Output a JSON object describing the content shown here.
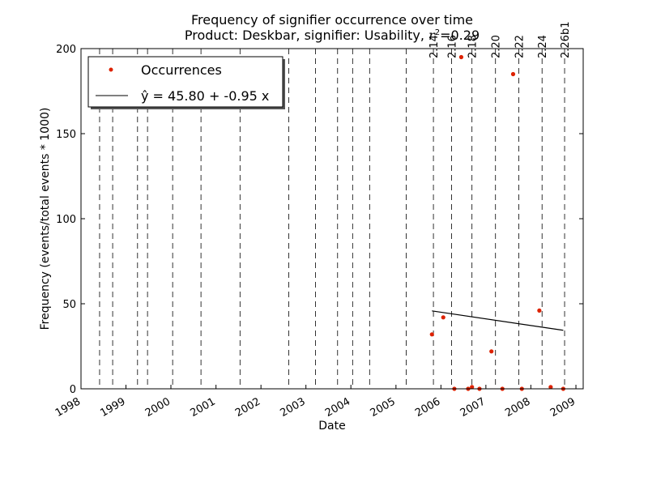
{
  "chart_data": {
    "type": "scatter",
    "title": "Frequency of signifier occurrence over time",
    "subtitle_prefix": "Product: Deskbar, signifier: Usability, ",
    "subtitle_r2_symbol": "r",
    "subtitle_r2_exp": "2",
    "subtitle_r2_value": "=0.29",
    "xlabel": "Date",
    "ylabel": "Frequency (events/total events * 1000)",
    "x_range": [
      "1998-01-01",
      "2009-03-01"
    ],
    "ylim": [
      0,
      200
    ],
    "x_ticks": [
      "1998-01-01",
      "1999-01-01",
      "2000-01-01",
      "2001-01-01",
      "2002-01-01",
      "2003-01-01",
      "2004-01-01",
      "2005-01-01",
      "2006-01-01",
      "2007-01-01",
      "2008-01-01",
      "2009-01-01"
    ],
    "x_tick_labels": [
      "1998",
      "1999",
      "2000",
      "2001",
      "2002",
      "2003",
      "2004",
      "2005",
      "2006",
      "2007",
      "2008",
      "2009"
    ],
    "y_ticks": [
      0,
      50,
      100,
      150,
      200
    ],
    "y_tick_labels": [
      "0",
      "50",
      "100",
      "150",
      "200"
    ],
    "release_lines": [
      {
        "date": "1998-06-01"
      },
      {
        "date": "1998-09-15"
      },
      {
        "date": "1999-04-05"
      },
      {
        "date": "1999-06-25"
      },
      {
        "date": "2000-01-15"
      },
      {
        "date": "2000-09-01"
      },
      {
        "date": "2001-07-15"
      },
      {
        "date": "2002-08-15"
      },
      {
        "date": "2003-03-20"
      },
      {
        "date": "2003-09-15"
      },
      {
        "date": "2004-01-15"
      },
      {
        "date": "2004-06-01"
      },
      {
        "date": "2005-03-25"
      },
      {
        "date": "2005-11-01",
        "label": "2.14"
      },
      {
        "date": "2006-03-28",
        "label": "2.16"
      },
      {
        "date": "2006-09-10",
        "label": "2.18"
      },
      {
        "date": "2007-03-20",
        "label": "2.20"
      },
      {
        "date": "2007-09-25",
        "label": "2.22"
      },
      {
        "date": "2008-04-01",
        "label": "2.24"
      },
      {
        "date": "2008-10-01",
        "label": "2.26b1"
      }
    ],
    "series": [
      {
        "name": "Occurrences",
        "color": "#dd2200",
        "x": [
          "2005-10-20",
          "2006-01-20",
          "2006-04-20",
          "2006-06-15",
          "2006-08-10",
          "2006-09-10",
          "2006-11-10",
          "2007-02-15",
          "2007-05-15",
          "2007-08-10",
          "2007-10-20",
          "2008-03-10",
          "2008-06-10",
          "2008-09-20"
        ],
        "y": [
          32,
          42,
          0,
          195,
          0,
          1,
          0,
          22,
          0,
          185,
          0,
          46,
          1,
          0
        ]
      }
    ],
    "fit": {
      "label": "ŷ = 45.80 + -0.95 x",
      "color": "#000000",
      "x_start": "2005-10-20",
      "x_end": "2008-09-20",
      "y_start": 45.8,
      "y_end": 34.4
    },
    "legend_position": "top-left",
    "grid": false
  }
}
